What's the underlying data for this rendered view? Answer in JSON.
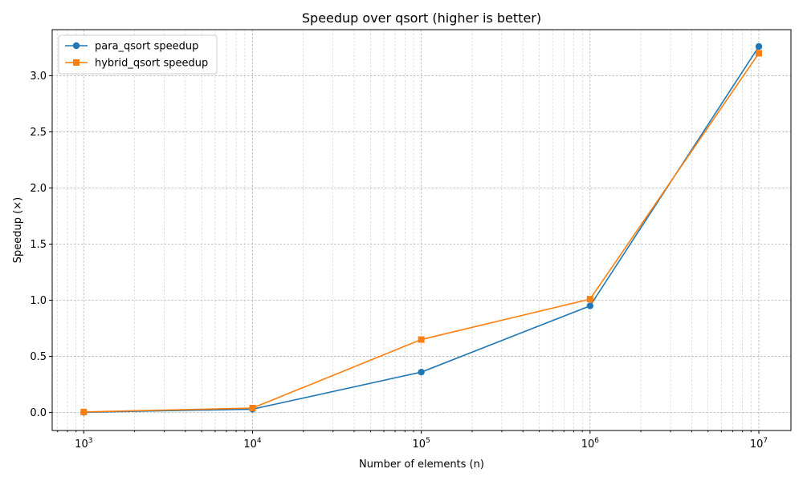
{
  "chart_data": {
    "type": "line",
    "title": "Speedup over qsort (higher is better)",
    "xlabel": "Number of elements (n)",
    "ylabel": "Speedup (×)",
    "xscale": "log",
    "x": [
      1000,
      10000,
      100000,
      1000000,
      10000000
    ],
    "xlim": [
      650,
      15500000
    ],
    "ylim": [
      -0.16,
      3.41
    ],
    "x_ticks": [
      {
        "value": 1000,
        "base": "10",
        "exp": "3"
      },
      {
        "value": 10000,
        "base": "10",
        "exp": "4"
      },
      {
        "value": 100000,
        "base": "10",
        "exp": "5"
      },
      {
        "value": 1000000,
        "base": "10",
        "exp": "6"
      },
      {
        "value": 10000000,
        "base": "10",
        "exp": "7"
      }
    ],
    "y_ticks": [
      {
        "value": 0.0,
        "label": "0.0"
      },
      {
        "value": 0.5,
        "label": "0.5"
      },
      {
        "value": 1.0,
        "label": "1.0"
      },
      {
        "value": 1.5,
        "label": "1.5"
      },
      {
        "value": 2.0,
        "label": "2.0"
      },
      {
        "value": 2.5,
        "label": "2.5"
      },
      {
        "value": 3.0,
        "label": "3.0"
      }
    ],
    "grid": true,
    "legend_position": "upper-left",
    "series": [
      {
        "name": "para_qsort speedup",
        "color": "#1f77b4",
        "marker": "circle",
        "values": [
          0.002,
          0.03,
          0.36,
          0.95,
          3.26
        ]
      },
      {
        "name": "hybrid_qsort speedup",
        "color": "#ff7f0e",
        "marker": "square",
        "values": [
          0.005,
          0.04,
          0.65,
          1.01,
          3.2
        ]
      }
    ]
  }
}
